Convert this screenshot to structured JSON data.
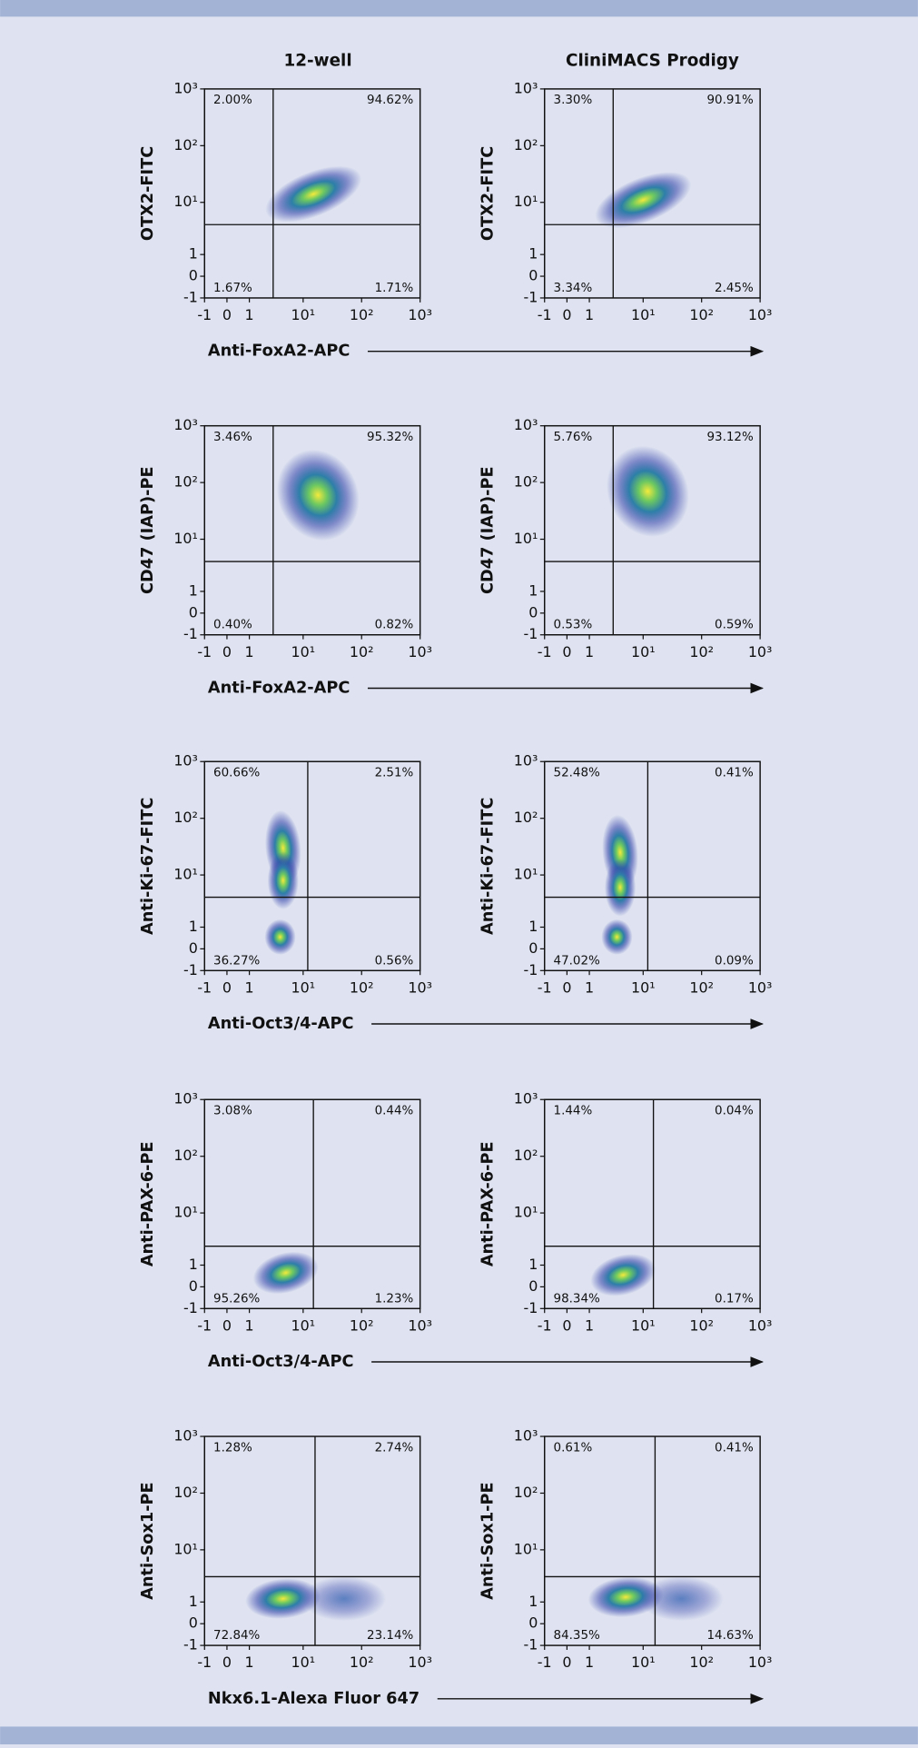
{
  "columns": [
    "12-well",
    "CliniMACS Prodigy"
  ],
  "chart_data": [
    {
      "type": "scatter",
      "ylabel": "OTX2-FITC",
      "xlabel": "Anti-FoxA2-APC",
      "xscale": "asinh",
      "yscale": "asinh",
      "xlim": [
        -1,
        1000
      ],
      "ylim": [
        -1,
        1000
      ],
      "xticks": [
        -1,
        0,
        1,
        {
          "value": 10,
          "label": "10¹"
        },
        {
          "value": 100,
          "label": "10²"
        },
        {
          "value": 1000,
          "label": "10³"
        }
      ],
      "yticks": [
        -1,
        0,
        1,
        {
          "value": 10,
          "label": "10¹"
        },
        {
          "value": 100,
          "label": "10²"
        },
        {
          "value": 1000,
          "label": "10³"
        }
      ],
      "gates": {
        "x": 3,
        "y": 4
      },
      "clusters": {
        "x": [
          15
        ],
        "y": [
          14
        ]
      },
      "color": "#3344aa",
      "quadrant_labels": [
        "2.00%",
        "94.62%",
        "1.67%",
        "1.71%"
      ]
    },
    {
      "type": "scatter",
      "ylabel": "OTX2-FITC",
      "xscale": "asinh",
      "yscale": "asinh",
      "xlim": [
        -1,
        1000
      ],
      "ylim": [
        -1,
        1000
      ],
      "xticks": [
        -1,
        0,
        1,
        {
          "value": 10,
          "label": "10¹"
        },
        {
          "value": 100,
          "label": "10²"
        },
        {
          "value": 1000,
          "label": "10³"
        }
      ],
      "yticks": [
        -1,
        0,
        1,
        {
          "value": 10,
          "label": "10¹"
        },
        {
          "value": 100,
          "label": "10²"
        },
        {
          "value": 1000,
          "label": "10³"
        }
      ],
      "gates": {
        "x": 3,
        "y": 4
      },
      "clusters": {
        "x": [
          10
        ],
        "y": [
          11
        ]
      },
      "color": "#3344aa",
      "quadrant_labels": [
        "3.30%",
        "90.91%",
        "3.34%",
        "2.45%"
      ]
    },
    {
      "type": "scatter",
      "ylabel": "CD47 (IAP)-PE",
      "xlabel": "Anti-FoxA2-APC",
      "xscale": "asinh",
      "yscale": "asinh",
      "xlim": [
        -1,
        1000
      ],
      "ylim": [
        -1,
        1000
      ],
      "xticks": [
        -1,
        0,
        1,
        {
          "value": 10,
          "label": "10¹"
        },
        {
          "value": 100,
          "label": "10²"
        },
        {
          "value": 1000,
          "label": "10³"
        }
      ],
      "yticks": [
        -1,
        0,
        1,
        {
          "value": 10,
          "label": "10¹"
        },
        {
          "value": 100,
          "label": "10²"
        },
        {
          "value": 1000,
          "label": "10³"
        }
      ],
      "gates": {
        "x": 3,
        "y": 4
      },
      "clusters": {
        "x": [
          18
        ],
        "y": [
          60
        ]
      },
      "color": "#3344aa",
      "quadrant_labels": [
        "3.46%",
        "95.32%",
        "0.40%",
        "0.82%"
      ]
    },
    {
      "type": "scatter",
      "ylabel": "CD47 (IAP)-PE",
      "xscale": "asinh",
      "yscale": "asinh",
      "xlim": [
        -1,
        1000
      ],
      "ylim": [
        -1,
        1000
      ],
      "xticks": [
        -1,
        0,
        1,
        {
          "value": 10,
          "label": "10¹"
        },
        {
          "value": 100,
          "label": "10²"
        },
        {
          "value": 1000,
          "label": "10³"
        }
      ],
      "yticks": [
        -1,
        0,
        1,
        {
          "value": 10,
          "label": "10¹"
        },
        {
          "value": 100,
          "label": "10²"
        },
        {
          "value": 1000,
          "label": "10³"
        }
      ],
      "gates": {
        "x": 3,
        "y": 4
      },
      "clusters": {
        "x": [
          12
        ],
        "y": [
          70
        ]
      },
      "color": "#3344aa",
      "quadrant_labels": [
        "5.76%",
        "93.12%",
        "0.53%",
        "0.59%"
      ]
    },
    {
      "type": "scatter",
      "ylabel": "Anti-Ki-67-FITC",
      "xlabel": "Anti-Oct3/4-APC",
      "xscale": "asinh",
      "yscale": "asinh",
      "xlim": [
        -1,
        1000
      ],
      "ylim": [
        -1,
        1000
      ],
      "xticks": [
        -1,
        0,
        1,
        {
          "value": 10,
          "label": "10¹"
        },
        {
          "value": 100,
          "label": "10²"
        },
        {
          "value": 1000,
          "label": "10³"
        }
      ],
      "yticks": [
        -1,
        0,
        1,
        {
          "value": 10,
          "label": "10¹"
        },
        {
          "value": 100,
          "label": "10²"
        },
        {
          "value": 1000,
          "label": "10³"
        }
      ],
      "gates": {
        "x": 12,
        "y": 4
      },
      "clusters": {
        "x": [
          4.5,
          4.5,
          4
        ],
        "y": [
          30,
          8,
          0.5
        ]
      },
      "color": "#3344aa",
      "quadrant_labels": [
        "60.66%",
        "2.51%",
        "36.27%",
        "0.56%"
      ]
    },
    {
      "type": "scatter",
      "ylabel": "Anti-Ki-67-FITC",
      "xscale": "asinh",
      "yscale": "asinh",
      "xlim": [
        -1,
        1000
      ],
      "ylim": [
        -1,
        1000
      ],
      "xticks": [
        -1,
        0,
        1,
        {
          "value": 10,
          "label": "10¹"
        },
        {
          "value": 100,
          "label": "10²"
        },
        {
          "value": 1000,
          "label": "10³"
        }
      ],
      "yticks": [
        -1,
        0,
        1,
        {
          "value": 10,
          "label": "10¹"
        },
        {
          "value": 100,
          "label": "10²"
        },
        {
          "value": 1000,
          "label": "10³"
        }
      ],
      "gates": {
        "x": 12,
        "y": 4
      },
      "clusters": {
        "x": [
          4,
          4,
          3.5
        ],
        "y": [
          25,
          6,
          0.5
        ]
      },
      "color": "#3344aa",
      "quadrant_labels": [
        "52.48%",
        "0.41%",
        "47.02%",
        "0.09%"
      ]
    },
    {
      "type": "scatter",
      "ylabel": "Anti-PAX-6-PE",
      "xlabel": "Anti-Oct3/4-APC",
      "xscale": "asinh",
      "yscale": "asinh",
      "xlim": [
        -1,
        1000
      ],
      "ylim": [
        -1,
        1000
      ],
      "xticks": [
        -1,
        0,
        1,
        {
          "value": 10,
          "label": "10¹"
        },
        {
          "value": 100,
          "label": "10²"
        },
        {
          "value": 1000,
          "label": "10³"
        }
      ],
      "yticks": [
        -1,
        0,
        1,
        {
          "value": 10,
          "label": "10¹"
        },
        {
          "value": 100,
          "label": "10²"
        },
        {
          "value": 1000,
          "label": "10³"
        }
      ],
      "gates": {
        "x": 15,
        "y": 2.5
      },
      "clusters": {
        "x": [
          5
        ],
        "y": [
          0.6
        ]
      },
      "color": "#3344aa",
      "quadrant_labels": [
        "3.08%",
        "0.44%",
        "95.26%",
        "1.23%"
      ]
    },
    {
      "type": "scatter",
      "ylabel": "Anti-PAX-6-PE",
      "xscale": "asinh",
      "yscale": "asinh",
      "xlim": [
        -1,
        1000
      ],
      "ylim": [
        -1,
        1000
      ],
      "xticks": [
        -1,
        0,
        1,
        {
          "value": 10,
          "label": "10¹"
        },
        {
          "value": 100,
          "label": "10²"
        },
        {
          "value": 1000,
          "label": "10³"
        }
      ],
      "yticks": [
        -1,
        0,
        1,
        {
          "value": 10,
          "label": "10¹"
        },
        {
          "value": 100,
          "label": "10²"
        },
        {
          "value": 1000,
          "label": "10³"
        }
      ],
      "gates": {
        "x": 15,
        "y": 2.5
      },
      "clusters": {
        "x": [
          4.5
        ],
        "y": [
          0.5
        ]
      },
      "color": "#3344aa",
      "quadrant_labels": [
        "1.44%",
        "0.04%",
        "98.34%",
        "0.17%"
      ]
    },
    {
      "type": "scatter",
      "ylabel": "Anti-Sox1-PE",
      "xlabel": "Nkx6.1-Alexa Fluor 647",
      "xscale": "asinh",
      "yscale": "asinh",
      "xlim": [
        -1,
        1000
      ],
      "ylim": [
        -1,
        1000
      ],
      "xticks": [
        -1,
        0,
        1,
        {
          "value": 10,
          "label": "10¹"
        },
        {
          "value": 100,
          "label": "10²"
        },
        {
          "value": 1000,
          "label": "10³"
        }
      ],
      "yticks": [
        -1,
        0,
        1,
        {
          "value": 10,
          "label": "10¹"
        },
        {
          "value": 100,
          "label": "10²"
        },
        {
          "value": 1000,
          "label": "10³"
        }
      ],
      "gates": {
        "x": 16,
        "y": 3.3
      },
      "clusters": {
        "x": [
          4.5,
          50
        ],
        "y": [
          1.2,
          1.2
        ]
      },
      "color": "#3344aa",
      "quadrant_labels": [
        "1.28%",
        "2.74%",
        "72.84%",
        "23.14%"
      ]
    },
    {
      "type": "scatter",
      "ylabel": "Anti-Sox1-PE",
      "xscale": "asinh",
      "yscale": "asinh",
      "xlim": [
        -1,
        1000
      ],
      "ylim": [
        -1,
        1000
      ],
      "xticks": [
        -1,
        0,
        1,
        {
          "value": 10,
          "label": "10¹"
        },
        {
          "value": 100,
          "label": "10²"
        },
        {
          "value": 1000,
          "label": "10³"
        }
      ],
      "yticks": [
        -1,
        0,
        1,
        {
          "value": 10,
          "label": "10¹"
        },
        {
          "value": 100,
          "label": "10²"
        },
        {
          "value": 1000,
          "label": "10³"
        }
      ],
      "gates": {
        "x": 16,
        "y": 3.3
      },
      "clusters": {
        "x": [
          5,
          45
        ],
        "y": [
          1.3,
          1.2
        ]
      },
      "color": "#3344aa",
      "quadrant_labels": [
        "0.61%",
        "0.41%",
        "84.35%",
        "14.63%"
      ]
    }
  ]
}
